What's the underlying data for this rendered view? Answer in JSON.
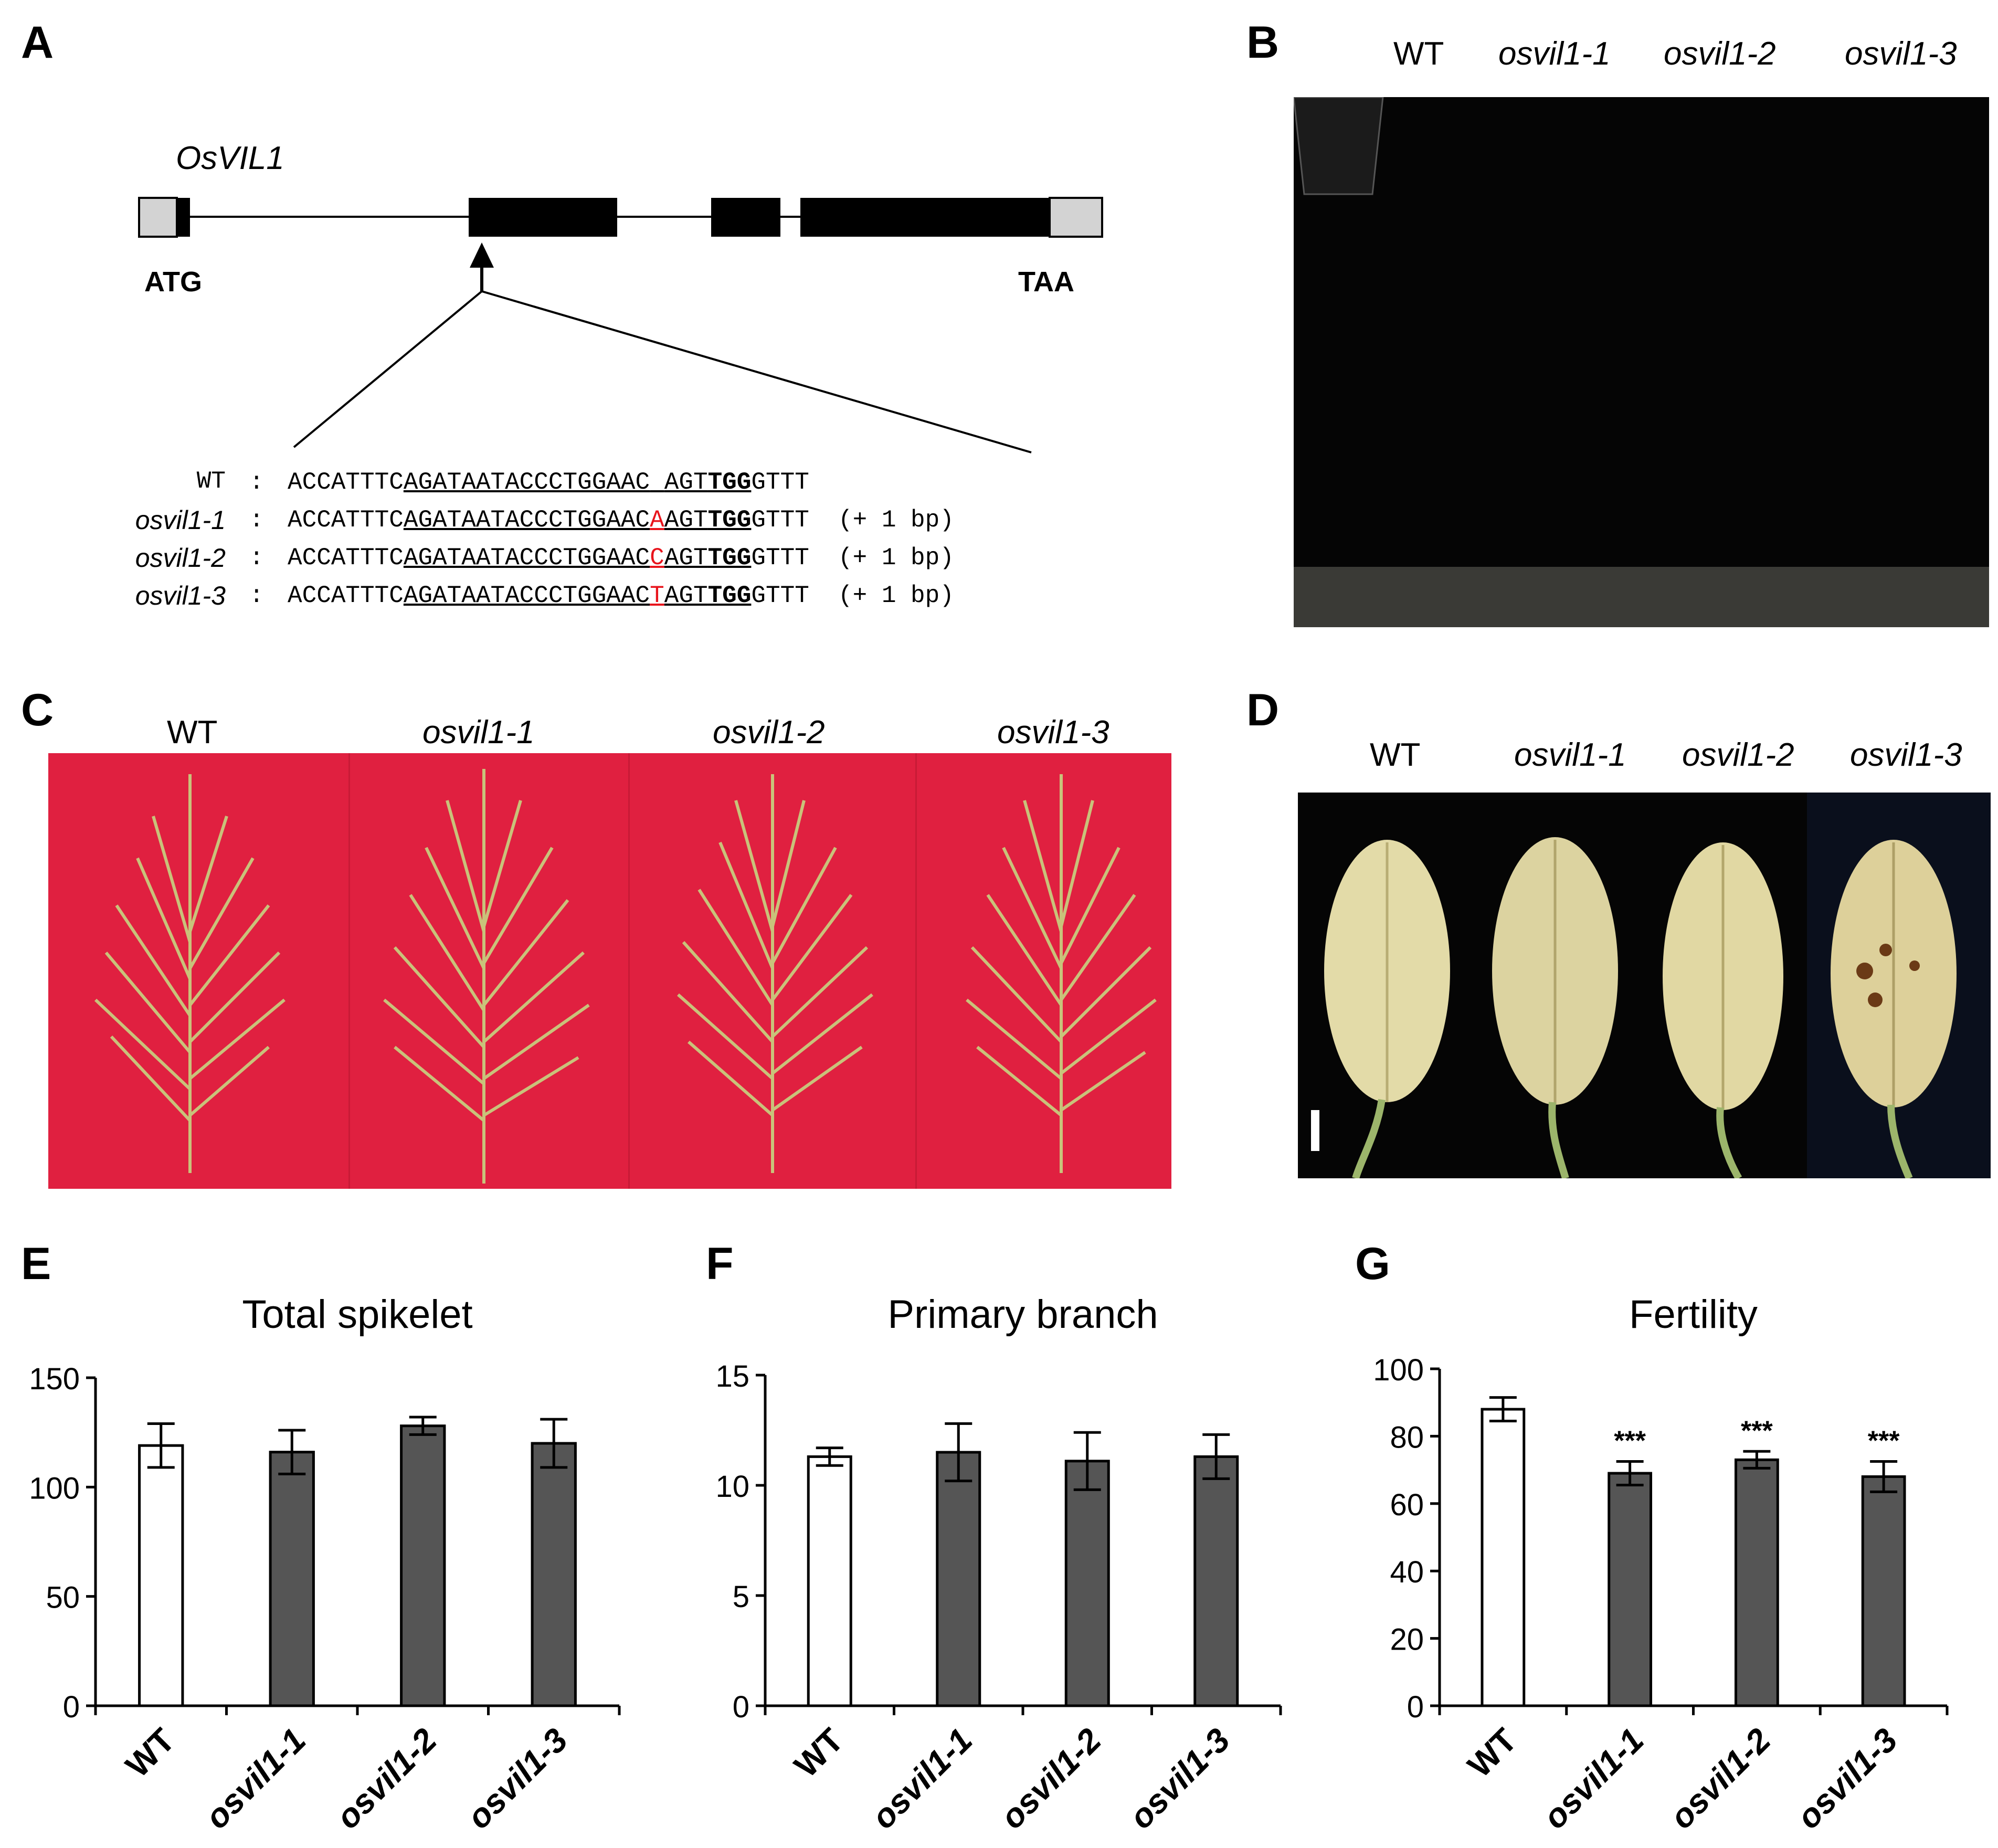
{
  "panels": {
    "A": {
      "letter": "A",
      "gene_name": "OsVIL1",
      "start_codon": "ATG",
      "stop_codon": "TAA",
      "sequences": [
        {
          "name": "WT",
          "colon": ":",
          "pre": "ACCATTTC",
          "ul1": "AGATAATACCCTGGAAC",
          "ins": " ",
          "ul2": "AGT",
          "pam": "TGG",
          "post": "GTTT",
          "note": ""
        },
        {
          "name": "osvil1-1",
          "colon": ":",
          "pre": "ACCATTTC",
          "ul1": "AGATAATACCCTGGAAC",
          "ins": "A",
          "ul2": "AGT",
          "pam": "TGG",
          "post": "GTTT",
          "note": "(+ 1 bp)"
        },
        {
          "name": "osvil1-2",
          "colon": ":",
          "pre": "ACCATTTC",
          "ul1": "AGATAATACCCTGGAAC",
          "ins": "C",
          "ul2": "AGT",
          "pam": "TGG",
          "post": "GTTT",
          "note": "(+ 1 bp)"
        },
        {
          "name": "osvil1-3",
          "colon": ":",
          "pre": "ACCATTTC",
          "ul1": "AGATAATACCCTGGAAC",
          "ins": "T",
          "ul2": "AGT",
          "pam": "TGG",
          "post": "GTTT",
          "note": "(+ 1 bp)"
        }
      ]
    },
    "B": {
      "letter": "B",
      "labels": [
        "WT",
        "osvil1-1",
        "osvil1-2",
        "osvil1-3"
      ]
    },
    "C": {
      "letter": "C",
      "labels": [
        "WT",
        "osvil1-1",
        "osvil1-2",
        "osvil1-3"
      ]
    },
    "D": {
      "letter": "D",
      "labels": [
        "WT",
        "osvil1-1",
        "osvil1-2",
        "osvil1-3"
      ]
    },
    "E": {
      "letter": "E"
    },
    "F": {
      "letter": "F"
    },
    "G": {
      "letter": "G"
    }
  },
  "colors": {
    "exon": "#000000",
    "utr": "#d3d3d3",
    "insertion": "#e8141c",
    "wt_bar": "#ffffff",
    "mutant_bar": "#555555",
    "panel_c_background": "#e02040",
    "photo_background": "#000000"
  },
  "chart_data": [
    {
      "type": "bar",
      "title": "Total spikelet",
      "categories": [
        "WT",
        "osvil1-1",
        "osvil1-2",
        "osvil1-3"
      ],
      "values": [
        119,
        116,
        128,
        120
      ],
      "errors": [
        10,
        10,
        4,
        11
      ],
      "significance": [
        "",
        "",
        "",
        ""
      ],
      "ylim": [
        0,
        150
      ],
      "yticks": [
        0,
        50,
        100,
        150
      ]
    },
    {
      "type": "bar",
      "title": "Primary branch",
      "categories": [
        "WT",
        "osvil1-1",
        "osvil1-2",
        "osvil1-3"
      ],
      "values": [
        11.3,
        11.5,
        11.1,
        11.3
      ],
      "errors": [
        0.4,
        1.3,
        1.3,
        1.0
      ],
      "significance": [
        "",
        "",
        "",
        ""
      ],
      "ylim": [
        0,
        15
      ],
      "yticks": [
        0,
        5,
        10,
        15
      ]
    },
    {
      "type": "bar",
      "title": "Fertility",
      "categories": [
        "WT",
        "osvil1-1",
        "osvil1-2",
        "osvil1-3"
      ],
      "values": [
        88,
        69,
        73,
        68
      ],
      "errors": [
        3.5,
        3.5,
        2.5,
        4.5
      ],
      "significance": [
        "",
        "***",
        "***",
        "***"
      ],
      "ylim": [
        0,
        100
      ],
      "yticks": [
        0,
        20,
        40,
        60,
        80,
        100
      ]
    }
  ]
}
